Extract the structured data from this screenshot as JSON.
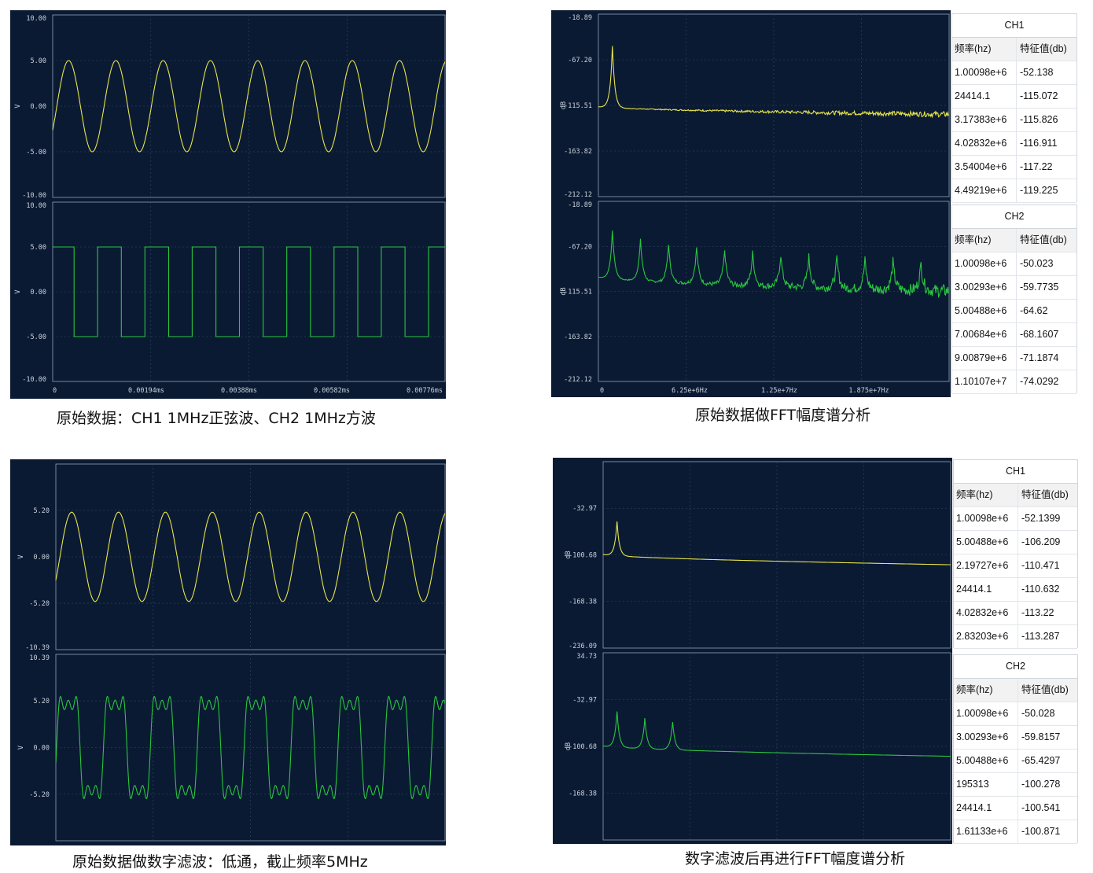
{
  "colors": {
    "bg": "#0b1a33",
    "grid": "#2f4a66",
    "axis": "#8fa2b8",
    "ch1": "#e6e44a",
    "ch2": "#29c640"
  },
  "captions": {
    "time_raw": "原始数据：CH1 1MHz正弦波、CH2 1MHz方波",
    "fft_raw": "原始数据做FFT幅度谱分析",
    "time_filtered": "原始数据做数字滤波：低通，截止频率5MHz",
    "fft_filtered": "数字滤波后再进行FFT幅度谱分析"
  },
  "chart_data": [
    {
      "id": "time_raw",
      "type": "line",
      "subplots": [
        {
          "channel": "CH1",
          "ylabel": "V",
          "yticks": [
            "10.00",
            "5.00",
            "0.00",
            "-5.00",
            "-10.00"
          ],
          "ylim": [
            -10,
            10
          ],
          "series": [
            {
              "waveform": "sine",
              "frequency_mhz": 1,
              "amplitude_v": 5,
              "cycles": 8.3
            }
          ]
        },
        {
          "channel": "CH2",
          "ylabel": "V",
          "yticks": [
            "10.00",
            "5.00",
            "0.00",
            "-5.00",
            "-10.00"
          ],
          "ylim": [
            -10,
            10
          ],
          "series": [
            {
              "waveform": "square",
              "frequency_mhz": 1,
              "amplitude_v": 5,
              "cycles": 8.3
            }
          ]
        }
      ],
      "xticks": [
        "0",
        "0.00194ms",
        "0.00388ms",
        "0.00582ms",
        "0.00776ms"
      ]
    },
    {
      "id": "fft_raw",
      "type": "line",
      "subplots": [
        {
          "channel": "CH1",
          "ylabel": "dB",
          "yticks": [
            "-18.89",
            "-67.20",
            "-115.51",
            "-163.82",
            "-212.12"
          ],
          "ylim": [
            -212.12,
            -18.89
          ],
          "peaks_mhz": [
            1.00098
          ],
          "peak_db": [
            -52.138
          ],
          "floor_db": [
            -117,
            -125
          ]
        },
        {
          "channel": "CH2",
          "ylabel": "dB",
          "yticks": [
            "-18.89",
            "-67.20",
            "-115.51",
            "-163.82",
            "-212.12"
          ],
          "ylim": [
            -212.12,
            -18.89
          ],
          "peaks_mhz": [
            1,
            3,
            5,
            7,
            9,
            11,
            13,
            15,
            17,
            19,
            21,
            23
          ],
          "peak_db": [
            -50.023,
            -59.7735,
            -64.62,
            -68.1607,
            -71.1874,
            -74.0292,
            -76,
            -78,
            -80,
            -82,
            -84,
            -86
          ],
          "floor_db": [
            -100,
            -115
          ]
        }
      ],
      "xticks": [
        "0",
        "6.25e+6Hz",
        "1.25e+7Hz",
        "1.875e+7Hz"
      ]
    },
    {
      "id": "time_filtered",
      "type": "line",
      "subplots": [
        {
          "channel": "CH1",
          "ylabel": "V",
          "yticks": [
            "5.20",
            "0.00",
            "-5.20",
            "-10.39"
          ],
          "ylim": [
            -10.39,
            10.39
          ],
          "series": [
            {
              "waveform": "sine",
              "frequency_mhz": 1,
              "amplitude_v": 5,
              "cycles": 8.3
            }
          ]
        },
        {
          "channel": "CH2",
          "ylabel": "V",
          "yticks": [
            "10.39",
            "5.20",
            "0.00",
            "-5.20"
          ],
          "ylim": [
            -10.39,
            10.39
          ],
          "series": [
            {
              "waveform": "square-lowpass-5mhz",
              "frequency_mhz": 1,
              "amplitude_v": 5,
              "cycles": 8.3
            }
          ]
        }
      ],
      "xticks": []
    },
    {
      "id": "fft_filtered",
      "type": "line",
      "subplots": [
        {
          "channel": "CH1",
          "ylabel": "dB",
          "yticks": [
            "-32.97",
            "-100.68",
            "-168.38",
            "-236.09"
          ],
          "ylim": [
            -236.09,
            34.73
          ],
          "peaks_mhz": [
            1,
            5
          ],
          "peak_db": [
            -52.1399,
            -106.209
          ],
          "floor_db": [
            -100,
            -115
          ]
        },
        {
          "channel": "CH2",
          "ylabel": "dB",
          "yticks": [
            "34.73",
            "-32.97",
            "-100.68",
            "-168.38"
          ],
          "ylim": [
            -236.09,
            34.73
          ],
          "peaks_mhz": [
            1,
            3,
            5
          ],
          "peak_db": [
            -50.028,
            -59.8157,
            -65.4297
          ],
          "floor_db": [
            -100,
            -115
          ]
        }
      ],
      "xticks": []
    }
  ],
  "tables": {
    "raw": [
      {
        "title": "CH1",
        "col_freq": "频率(hz)",
        "col_val": "特征值(db)",
        "rows": [
          [
            "1.00098e+6",
            "-52.138"
          ],
          [
            "24414.1",
            "-115.072"
          ],
          [
            "3.17383e+6",
            "-115.826"
          ],
          [
            "4.02832e+6",
            "-116.911"
          ],
          [
            "3.54004e+6",
            "-117.22"
          ],
          [
            "4.49219e+6",
            "-119.225"
          ]
        ]
      },
      {
        "title": "CH2",
        "col_freq": "频率(hz)",
        "col_val": "特征值(db)",
        "rows": [
          [
            "1.00098e+6",
            "-50.023"
          ],
          [
            "3.00293e+6",
            "-59.7735"
          ],
          [
            "5.00488e+6",
            "-64.62"
          ],
          [
            "7.00684e+6",
            "-68.1607"
          ],
          [
            "9.00879e+6",
            "-71.1874"
          ],
          [
            "1.10107e+7",
            "-74.0292"
          ]
        ]
      }
    ],
    "filtered": [
      {
        "title": "CH1",
        "col_freq": "频率(hz)",
        "col_val": "特征值(db)",
        "rows": [
          [
            "1.00098e+6",
            "-52.1399"
          ],
          [
            "5.00488e+6",
            "-106.209"
          ],
          [
            "2.19727e+6",
            "-110.471"
          ],
          [
            "24414.1",
            "-110.632"
          ],
          [
            "4.02832e+6",
            "-113.22"
          ],
          [
            "2.83203e+6",
            "-113.287"
          ]
        ]
      },
      {
        "title": "CH2",
        "col_freq": "频率(hz)",
        "col_val": "特征值(db)",
        "rows": [
          [
            "1.00098e+6",
            "-50.028"
          ],
          [
            "3.00293e+6",
            "-59.8157"
          ],
          [
            "5.00488e+6",
            "-65.4297"
          ],
          [
            "195313",
            "-100.278"
          ],
          [
            "24414.1",
            "-100.541"
          ],
          [
            "1.61133e+6",
            "-100.871"
          ]
        ]
      }
    ]
  }
}
